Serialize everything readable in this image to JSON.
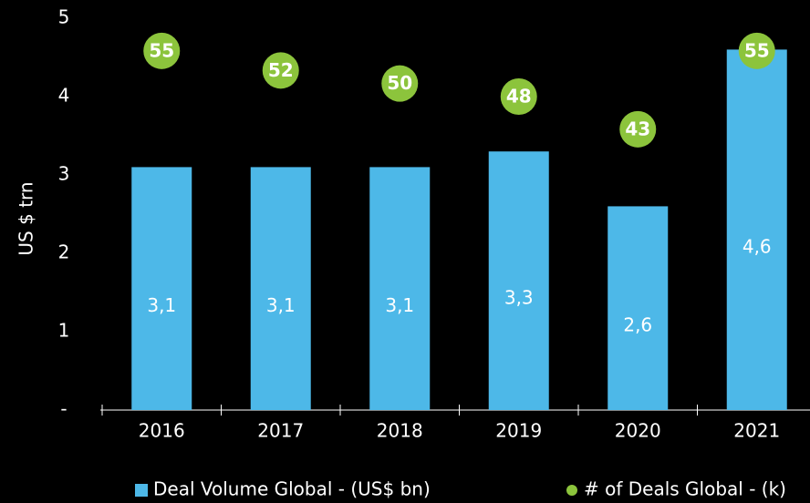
{
  "chart_data": {
    "type": "bar",
    "categories": [
      "2016",
      "2017",
      "2018",
      "2019",
      "2020",
      "2021"
    ],
    "series": [
      {
        "name": "Deal Volume Global - (US$ bn)",
        "color": "#4db8e8",
        "values": [
          3.1,
          3.1,
          3.1,
          3.3,
          2.6,
          4.6
        ],
        "value_labels": [
          "3,1",
          "3,1",
          "3,1",
          "3,3",
          "2,6",
          "4,6"
        ]
      },
      {
        "name": "# of Deals Global - (k)",
        "color": "#8cc43c",
        "values": [
          55,
          52,
          50,
          48,
          43,
          55
        ],
        "axis": "y2",
        "marker": "circle"
      }
    ],
    "ylabel": "US $ trn",
    "ylim": [
      0,
      5
    ],
    "yticks": [
      {
        "value": 0,
        "label": "-"
      },
      1,
      2,
      3,
      4,
      5
    ],
    "y2lim": [
      0,
      60
    ],
    "legend": "bottom",
    "grid": false
  }
}
